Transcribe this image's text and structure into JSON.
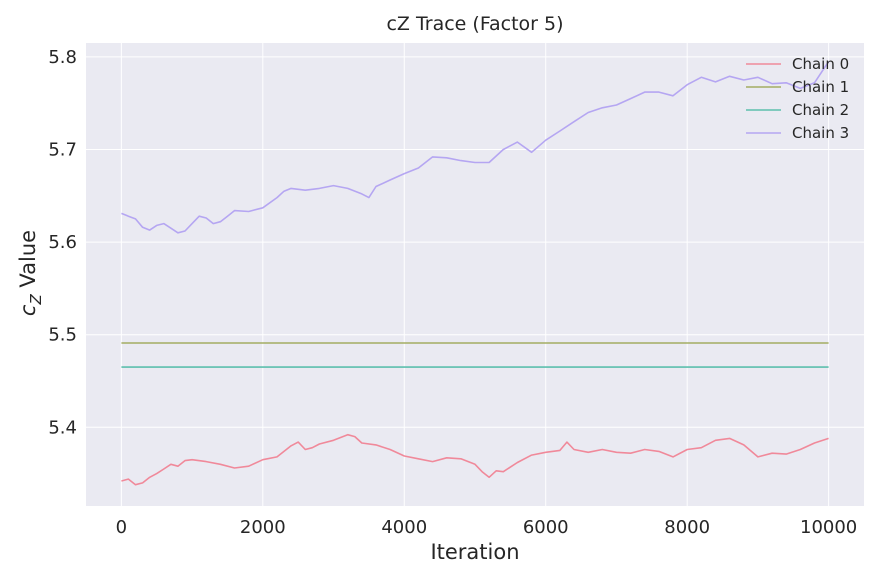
{
  "chart_data": {
    "type": "line",
    "title": "cZ Trace (Factor 5)",
    "xlabel": "Iteration",
    "ylabel": {
      "symbol": "c",
      "subscript": "Z",
      "rest": " Value"
    },
    "xlim": [
      -500,
      10500
    ],
    "ylim": [
      5.315,
      5.815
    ],
    "xticks": [
      0,
      2000,
      4000,
      6000,
      8000,
      10000
    ],
    "yticks": [
      5.4,
      5.5,
      5.6,
      5.7,
      5.8
    ],
    "grid": true,
    "legend_position": "top-right",
    "background": "#eaeaf2",
    "series": [
      {
        "name": "Chain 0",
        "color": "#f0899a",
        "x": [
          0,
          100,
          200,
          300,
          400,
          500,
          600,
          700,
          800,
          900,
          1000,
          1200,
          1400,
          1600,
          1800,
          2000,
          2200,
          2400,
          2500,
          2600,
          2700,
          2800,
          3000,
          3200,
          3300,
          3400,
          3600,
          3800,
          4000,
          4200,
          4400,
          4600,
          4800,
          5000,
          5100,
          5200,
          5300,
          5400,
          5600,
          5800,
          6000,
          6200,
          6300,
          6400,
          6600,
          6800,
          7000,
          7200,
          7400,
          7600,
          7800,
          8000,
          8200,
          8400,
          8600,
          8800,
          9000,
          9200,
          9400,
          9600,
          9800,
          10000
        ],
        "values": [
          5.342,
          5.344,
          5.338,
          5.34,
          5.346,
          5.35,
          5.355,
          5.36,
          5.358,
          5.364,
          5.365,
          5.363,
          5.36,
          5.356,
          5.358,
          5.365,
          5.368,
          5.38,
          5.384,
          5.376,
          5.378,
          5.382,
          5.386,
          5.392,
          5.39,
          5.383,
          5.381,
          5.376,
          5.369,
          5.366,
          5.363,
          5.367,
          5.366,
          5.36,
          5.352,
          5.346,
          5.353,
          5.352,
          5.362,
          5.37,
          5.373,
          5.375,
          5.384,
          5.376,
          5.373,
          5.376,
          5.373,
          5.372,
          5.376,
          5.374,
          5.368,
          5.376,
          5.378,
          5.386,
          5.388,
          5.381,
          5.368,
          5.372,
          5.371,
          5.376,
          5.383,
          5.388
        ]
      },
      {
        "name": "Chain 1",
        "color": "#a3ad62",
        "x": [
          0,
          10000
        ],
        "values": [
          5.491,
          5.491
        ]
      },
      {
        "name": "Chain 2",
        "color": "#5cbfad",
        "x": [
          0,
          10000
        ],
        "values": [
          5.465,
          5.465
        ]
      },
      {
        "name": "Chain 3",
        "color": "#b5a6f2",
        "x": [
          0,
          100,
          200,
          300,
          400,
          500,
          600,
          700,
          800,
          900,
          1000,
          1100,
          1200,
          1300,
          1400,
          1500,
          1600,
          1800,
          2000,
          2200,
          2300,
          2400,
          2500,
          2600,
          2800,
          3000,
          3200,
          3400,
          3500,
          3600,
          3800,
          4000,
          4200,
          4400,
          4600,
          4800,
          5000,
          5200,
          5400,
          5600,
          5800,
          6000,
          6200,
          6400,
          6600,
          6800,
          7000,
          7200,
          7400,
          7600,
          7800,
          8000,
          8200,
          8400,
          8600,
          8800,
          9000,
          9200,
          9400,
          9600,
          9800,
          10000
        ],
        "values": [
          5.631,
          5.628,
          5.625,
          5.616,
          5.613,
          5.618,
          5.62,
          5.615,
          5.61,
          5.612,
          5.62,
          5.628,
          5.626,
          5.62,
          5.622,
          5.628,
          5.634,
          5.633,
          5.637,
          5.648,
          5.655,
          5.658,
          5.657,
          5.656,
          5.658,
          5.661,
          5.658,
          5.652,
          5.648,
          5.66,
          5.667,
          5.674,
          5.68,
          5.692,
          5.691,
          5.688,
          5.686,
          5.686,
          5.7,
          5.708,
          5.697,
          5.71,
          5.72,
          5.73,
          5.74,
          5.745,
          5.748,
          5.755,
          5.762,
          5.762,
          5.758,
          5.77,
          5.778,
          5.773,
          5.779,
          5.775,
          5.778,
          5.771,
          5.772,
          5.766,
          5.772,
          5.795
        ]
      }
    ]
  }
}
